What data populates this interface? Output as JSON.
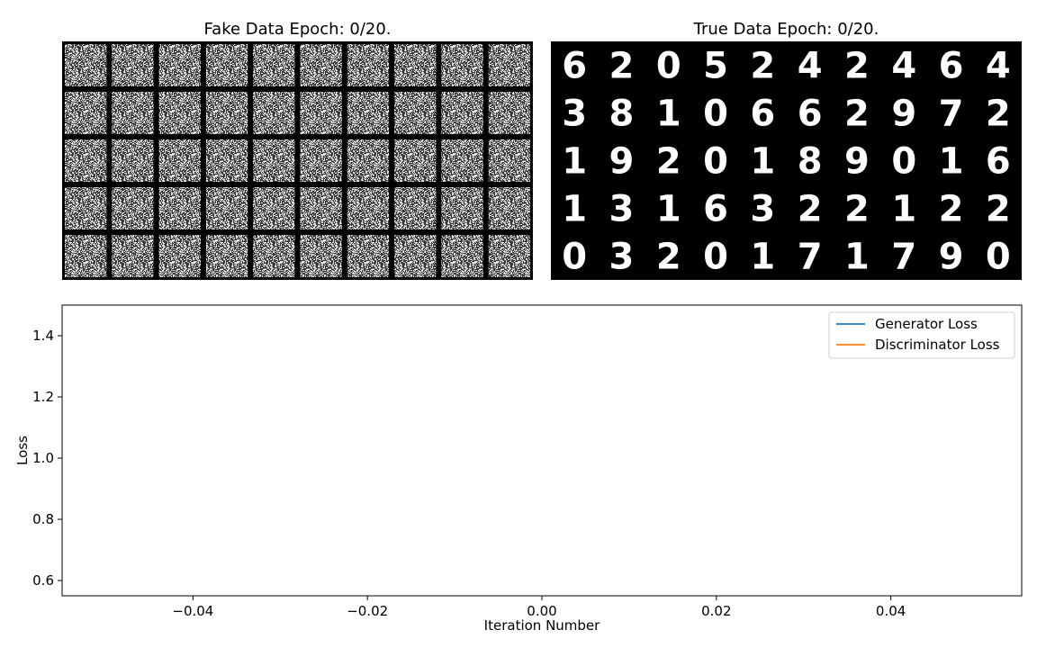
{
  "panels": {
    "fake": {
      "title": "Fake Data Epoch: 0/20.",
      "rows": 5,
      "cols": 10
    },
    "true": {
      "title": "True Data Epoch: 0/20.",
      "rows": 5,
      "cols": 10,
      "digits": [
        [
          "6",
          "2",
          "0",
          "5",
          "2",
          "4",
          "2",
          "4",
          "6",
          "4"
        ],
        [
          "3",
          "8",
          "1",
          "0",
          "6",
          "6",
          "2",
          "9",
          "7",
          "2"
        ],
        [
          "1",
          "9",
          "2",
          "0",
          "1",
          "8",
          "9",
          "0",
          "1",
          "6"
        ],
        [
          "1",
          "3",
          "1",
          "6",
          "3",
          "2",
          "2",
          "1",
          "2",
          "2"
        ],
        [
          "0",
          "3",
          "2",
          "0",
          "1",
          "7",
          "1",
          "7",
          "9",
          "0"
        ]
      ]
    }
  },
  "chart_data": {
    "type": "line",
    "title": "",
    "xlabel": "Iteration Number",
    "ylabel": "Loss",
    "xlim": [
      -0.055,
      0.055
    ],
    "ylim": [
      0.55,
      1.5
    ],
    "xticks": [
      -0.04,
      -0.02,
      0.0,
      0.02,
      0.04
    ],
    "xtick_labels": [
      "−0.04",
      "−0.02",
      "0.00",
      "0.02",
      "0.04"
    ],
    "yticks": [
      0.6,
      0.8,
      1.0,
      1.2,
      1.4
    ],
    "ytick_labels": [
      "0.6",
      "0.8",
      "1.0",
      "1.2",
      "1.4"
    ],
    "grid": false,
    "legend_position": "top-right",
    "series": [
      {
        "name": "Generator Loss",
        "color": "#1f77b4",
        "x": [],
        "y": []
      },
      {
        "name": "Discriminator Loss",
        "color": "#ff7f0e",
        "x": [],
        "y": []
      }
    ]
  }
}
